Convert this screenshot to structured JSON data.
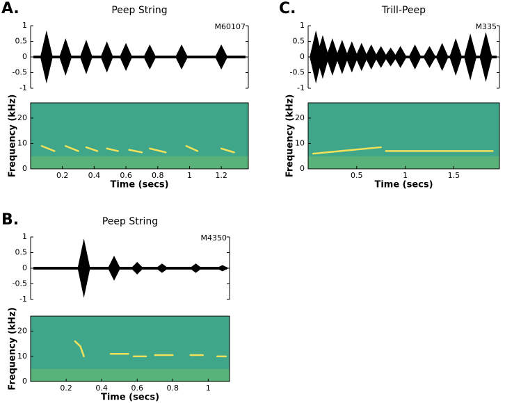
{
  "chart_data": [
    {
      "type": "waveform",
      "panel_label": "A.",
      "title": "Peep String",
      "annotation": "M60107",
      "xlim": [
        0,
        1.37
      ],
      "ylim": [
        -1,
        1
      ],
      "yticks": [
        -1,
        -0.5,
        0,
        0.5,
        1
      ],
      "x": [
        0.1,
        0.22,
        0.35,
        0.48,
        0.6,
        0.75,
        0.95,
        1.2
      ],
      "values": [
        0.85,
        0.6,
        0.55,
        0.5,
        0.45,
        0.4,
        0.4,
        0.4
      ],
      "color": "#000000"
    },
    {
      "type": "spectrogram",
      "xlabel": "Time (secs)",
      "ylabel": "Frequency (kHz)",
      "xlim": [
        0,
        1.37
      ],
      "ylim": [
        0,
        26
      ],
      "xticks": [
        0.2,
        0.4,
        0.6,
        0.8,
        1,
        1.2
      ],
      "yticks": [
        0,
        10,
        20
      ],
      "x": [
        0.07,
        0.15,
        null,
        0.22,
        0.3,
        null,
        0.35,
        0.42,
        null,
        0.48,
        0.55,
        null,
        0.62,
        0.7,
        null,
        0.75,
        0.85,
        null,
        0.98,
        1.05,
        null,
        1.2,
        1.28
      ],
      "values": [
        9,
        7,
        null,
        9,
        7,
        null,
        8.5,
        7,
        null,
        8,
        7,
        null,
        7.5,
        6.5,
        null,
        8,
        6.5,
        null,
        9,
        7,
        null,
        8,
        6.5
      ],
      "color": "#f2e15a"
    },
    {
      "type": "waveform",
      "panel_label": "C.",
      "title": "Trill-Peep",
      "annotation": "M335",
      "xlim": [
        0,
        1.97
      ],
      "ylim": [
        -1,
        1
      ],
      "yticks": [
        -1,
        -0.5,
        0,
        0.5,
        1
      ],
      "x": [
        0.08,
        0.15,
        0.25,
        0.35,
        0.45,
        0.55,
        0.65,
        0.75,
        0.85,
        0.95,
        1.1,
        1.25,
        1.38,
        1.52,
        1.67,
        1.83
      ],
      "values": [
        0.85,
        0.7,
        0.6,
        0.55,
        0.5,
        0.45,
        0.4,
        0.35,
        0.3,
        0.35,
        0.4,
        0.35,
        0.45,
        0.6,
        0.75,
        0.8
      ],
      "color": "#000000"
    },
    {
      "type": "spectrogram",
      "xlabel": "Time (secs)",
      "ylabel": "Frequency (kHz)",
      "xlim": [
        0,
        1.97
      ],
      "ylim": [
        0,
        26
      ],
      "xticks": [
        0.5,
        1,
        1.5
      ],
      "yticks": [
        0,
        10,
        20
      ],
      "x": [
        0.05,
        0.75,
        null,
        0.8,
        1.9
      ],
      "values": [
        6,
        8.5,
        null,
        7,
        7
      ],
      "color": "#f2e15a"
    },
    {
      "type": "waveform",
      "panel_label": "B.",
      "title": "Peep String",
      "annotation": "M4350",
      "xlim": [
        0,
        1.12
      ],
      "ylim": [
        -1,
        1
      ],
      "yticks": [
        -1,
        -0.5,
        0,
        0.5,
        1
      ],
      "x": [
        0.3,
        0.47,
        0.6,
        0.74,
        0.93,
        1.08
      ],
      "values": [
        0.95,
        0.4,
        0.2,
        0.15,
        0.15,
        0.1
      ],
      "color": "#000000"
    },
    {
      "type": "spectrogram",
      "xlabel": "Time (secs)",
      "ylabel": "Frequency (kHz)",
      "xlim": [
        0,
        1.12
      ],
      "ylim": [
        0,
        26
      ],
      "xticks": [
        0.2,
        0.4,
        0.6,
        0.8,
        1
      ],
      "yticks": [
        0,
        10,
        20
      ],
      "x": [
        0.25,
        0.28,
        0.3,
        null,
        0.45,
        0.55,
        null,
        0.58,
        0.65,
        null,
        0.7,
        0.8,
        null,
        0.9,
        0.97,
        null,
        1.05,
        1.1
      ],
      "values": [
        16,
        14,
        10,
        null,
        11,
        11,
        null,
        10,
        10,
        null,
        10.5,
        10.5,
        null,
        10.5,
        10.5,
        null,
        10,
        10
      ],
      "color": "#f2e15a"
    }
  ]
}
